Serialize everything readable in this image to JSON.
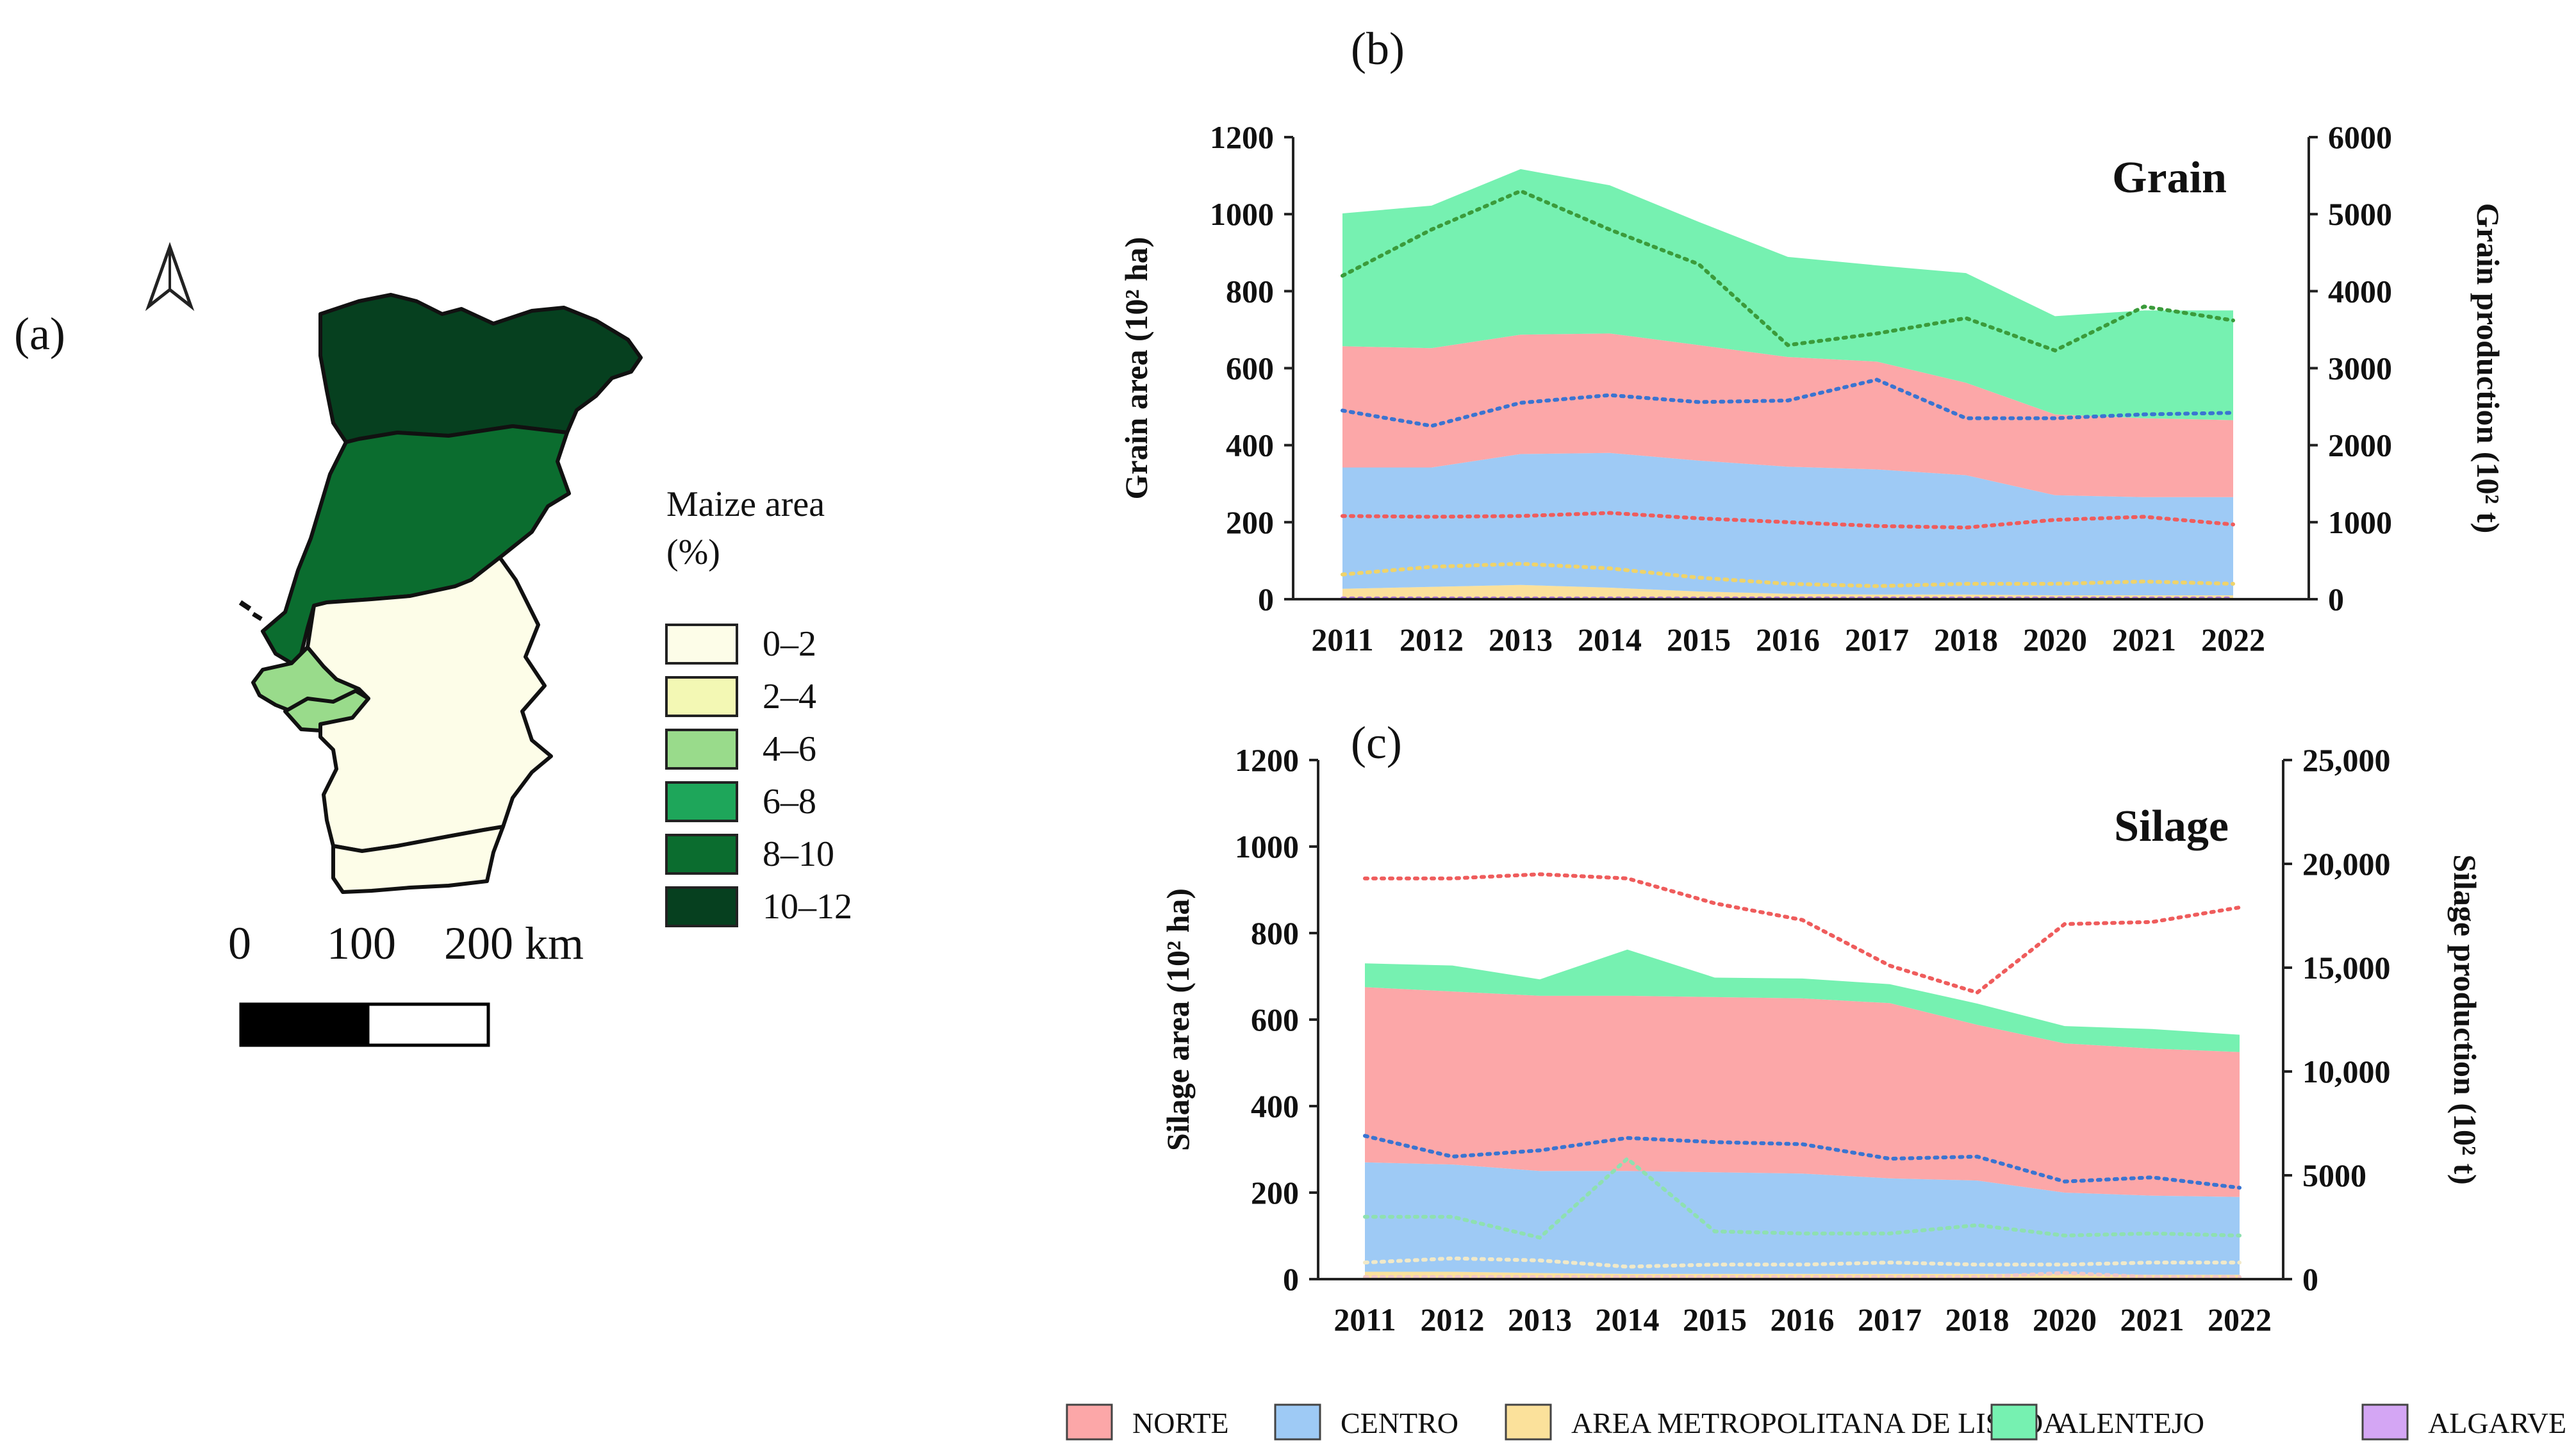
{
  "panel_labels": {
    "a": "(a)",
    "b": "(b)",
    "c": "(c)"
  },
  "map": {
    "legend_title_line1": "Maize area",
    "legend_title_line2": "(%)",
    "classes": [
      {
        "label": "0–2",
        "color": "#fdfde8"
      },
      {
        "label": "2–4",
        "color": "#f3f8b4"
      },
      {
        "label": "4–6",
        "color": "#99db8b"
      },
      {
        "label": "6–8",
        "color": "#1ea65a"
      },
      {
        "label": "8–10",
        "color": "#0b6d2f"
      },
      {
        "label": "10–12",
        "color": "#06401f"
      }
    ],
    "regions": [
      {
        "name": "NORTE",
        "class": "10–12"
      },
      {
        "name": "CENTRO",
        "class": "8–10"
      },
      {
        "name": "AREA METROPOLITANA DE LISBOA",
        "class": "4–6"
      },
      {
        "name": "ALENTEJO",
        "class": "0–2"
      },
      {
        "name": "ALGARVE",
        "class": "0–2"
      }
    ],
    "scale_labels": [
      "0",
      "100",
      "200 km"
    ],
    "north_arrow_icon": "north-arrow-icon"
  },
  "legend": [
    {
      "name": "NORTE",
      "color": "#fca7a8"
    },
    {
      "name": "CENTRO",
      "color": "#9ecaf5"
    },
    {
      "name": "AREA METROPOLITANA DE LISBOA",
      "color": "#fbe19b"
    },
    {
      "name": "ALENTEJO",
      "color": "#76f1b1"
    },
    {
      "name": "ALGARVE",
      "color": "#d4a6f4"
    }
  ],
  "chart_data": [
    {
      "id": "b",
      "type": "area",
      "title": "Grain",
      "categories": [
        "2011",
        "2012",
        "2013",
        "2014",
        "2015",
        "2016",
        "2017",
        "2018",
        "2020",
        "2021",
        "2022"
      ],
      "ylabel": "Grain area (10² ha)",
      "y2label": "Grain production (10² t)",
      "ylim": [
        0,
        1200
      ],
      "y2lim": [
        0,
        6000
      ],
      "yticks": [
        "0",
        "200",
        "400",
        "600",
        "800",
        "1000",
        "1200"
      ],
      "y2ticks": [
        "0",
        "1000",
        "2000",
        "3000",
        "4000",
        "5000",
        "6000"
      ],
      "stacked_area_series": [
        {
          "name": "ALGARVE",
          "color": "#d4a6f4",
          "values": [
            2,
            2,
            2,
            2,
            2,
            2,
            2,
            2,
            2,
            2,
            2
          ]
        },
        {
          "name": "AREA METROPOLITANA DE LISBOA",
          "color": "#fbe19b",
          "values": [
            25,
            30,
            35,
            28,
            18,
            12,
            10,
            10,
            8,
            8,
            8
          ]
        },
        {
          "name": "CENTRO",
          "color": "#9ecaf5",
          "values": [
            315,
            310,
            340,
            350,
            340,
            330,
            325,
            310,
            260,
            255,
            255
          ]
        },
        {
          "name": "NORTE",
          "color": "#fca7a8",
          "values": [
            315,
            310,
            310,
            310,
            300,
            285,
            280,
            240,
            210,
            205,
            200
          ]
        },
        {
          "name": "ALENTEJO",
          "color": "#76f1b1",
          "values": [
            345,
            370,
            430,
            385,
            320,
            260,
            250,
            285,
            255,
            280,
            285
          ]
        }
      ],
      "production_series": [
        {
          "name": "NORTE",
          "color": "#ef5c5c",
          "values": [
            1080,
            1070,
            1080,
            1120,
            1050,
            1000,
            950,
            930,
            1030,
            1070,
            970
          ]
        },
        {
          "name": "CENTRO",
          "color": "#3a74d1",
          "values": [
            2450,
            2250,
            2550,
            2650,
            2560,
            2580,
            2850,
            2350,
            2350,
            2400,
            2420
          ]
        },
        {
          "name": "AREA METROPOLITANA DE LISBOA",
          "color": "#efd36a",
          "values": [
            320,
            420,
            460,
            400,
            280,
            200,
            170,
            200,
            200,
            230,
            200
          ]
        },
        {
          "name": "ALENTEJO",
          "color": "#3b9b3b",
          "values": [
            4200,
            4800,
            5300,
            4800,
            4350,
            3300,
            3450,
            3650,
            3230,
            3800,
            3620
          ]
        },
        {
          "name": "ALGARVE",
          "color": "#b07ad8",
          "values": [
            10,
            10,
            10,
            10,
            10,
            10,
            10,
            10,
            10,
            10,
            10
          ]
        }
      ]
    },
    {
      "id": "c",
      "type": "area",
      "title": "Silage",
      "categories": [
        "2011",
        "2012",
        "2013",
        "2014",
        "2015",
        "2016",
        "2017",
        "2018",
        "2020",
        "2021",
        "2022"
      ],
      "ylabel": "Silage area (10² ha)",
      "y2label": "Silage production (10² t)",
      "ylim": [
        0,
        1200
      ],
      "y2lim": [
        0,
        25000
      ],
      "yticks": [
        "0",
        "200",
        "400",
        "600",
        "800",
        "1000",
        "1200"
      ],
      "y2ticks": [
        "0",
        "5000",
        "10,000",
        "15,000",
        "20,000",
        "25,000"
      ],
      "stacked_area_series": [
        {
          "name": "ALGARVE",
          "color": "#d4a6f4",
          "values": [
            2,
            2,
            2,
            2,
            2,
            2,
            2,
            2,
            2,
            2,
            2
          ]
        },
        {
          "name": "AREA METROPOLITANA DE LISBOA",
          "color": "#fbe19b",
          "values": [
            15,
            15,
            12,
            10,
            10,
            10,
            10,
            10,
            10,
            8,
            8
          ]
        },
        {
          "name": "CENTRO",
          "color": "#9ecaf5",
          "values": [
            253,
            248,
            236,
            238,
            235,
            232,
            221,
            216,
            188,
            183,
            180
          ]
        },
        {
          "name": "NORTE",
          "color": "#fca7a8",
          "values": [
            405,
            400,
            405,
            405,
            405,
            405,
            405,
            360,
            345,
            340,
            335
          ]
        },
        {
          "name": "ALENTEJO",
          "color": "#76f1b1",
          "values": [
            55,
            60,
            38,
            107,
            45,
            46,
            44,
            49,
            40,
            45,
            40
          ]
        }
      ],
      "production_series": [
        {
          "name": "NORTE",
          "color": "#ef5c5c",
          "values": [
            19300,
            19300,
            19500,
            19300,
            18100,
            17300,
            15100,
            13800,
            17100,
            17200,
            17900
          ]
        },
        {
          "name": "CENTRO",
          "color": "#3a74d1",
          "values": [
            6900,
            5900,
            6200,
            6800,
            6600,
            6500,
            5800,
            5900,
            4700,
            4900,
            4400
          ]
        },
        {
          "name": "ALENTEJO",
          "color": "#8ee0b0",
          "values": [
            3000,
            3000,
            2000,
            5800,
            2300,
            2200,
            2200,
            2600,
            2100,
            2200,
            2100
          ]
        },
        {
          "name": "AREA METROPOLITANA DE LISBOA",
          "color": "#f1e9c8",
          "values": [
            800,
            1000,
            900,
            600,
            700,
            700,
            800,
            700,
            700,
            800,
            800
          ]
        },
        {
          "name": "ALGARVE",
          "color": "#f1c6c6",
          "values": [
            100,
            100,
            100,
            100,
            100,
            100,
            100,
            100,
            300,
            100,
            100
          ]
        }
      ]
    }
  ]
}
